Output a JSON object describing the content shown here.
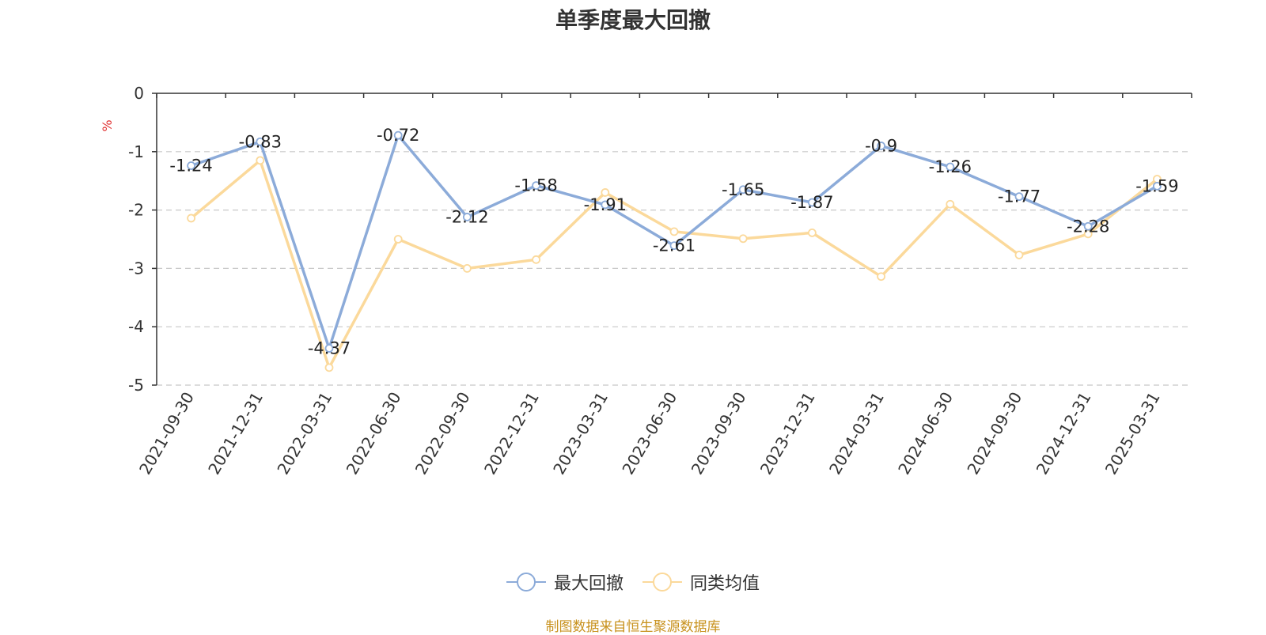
{
  "colors": {
    "series_primary": "#8cabd9",
    "series_secondary": "#fbd99b",
    "unit": "#e03030",
    "source": "#c8921e",
    "grid": "#c8c8c8",
    "axis": "#333333"
  },
  "legend": {
    "items": [
      {
        "label": "最大回撤",
        "icon": "circle-line-icon"
      },
      {
        "label": "同类均值",
        "icon": "circle-line-icon"
      }
    ]
  },
  "source_note": "制图数据来自恒生聚源数据库",
  "chart_data": {
    "type": "line",
    "title": "单季度最大回撤",
    "ylabel": "%",
    "xlabel": "",
    "ylim": [
      -5,
      0
    ],
    "yticks": [
      0,
      -1,
      -2,
      -3,
      -4,
      -5
    ],
    "grid": true,
    "legend_position": "bottom",
    "categories": [
      "2021-09-30",
      "2021-12-31",
      "2022-03-31",
      "2022-06-30",
      "2022-09-30",
      "2022-12-31",
      "2023-03-31",
      "2023-06-30",
      "2023-09-30",
      "2023-12-31",
      "2024-03-31",
      "2024-06-30",
      "2024-09-30",
      "2024-12-31",
      "2025-03-31"
    ],
    "series": [
      {
        "name": "最大回撤",
        "values": [
          -1.24,
          -0.83,
          -4.37,
          -0.72,
          -2.12,
          -1.58,
          -1.91,
          -2.61,
          -1.65,
          -1.87,
          -0.9,
          -1.26,
          -1.77,
          -2.28,
          -1.59
        ],
        "show_labels": true
      },
      {
        "name": "同类均值",
        "values": [
          -2.14,
          -1.15,
          -4.7,
          -2.5,
          -3.0,
          -2.85,
          -1.7,
          -2.37,
          -2.49,
          -2.39,
          -3.14,
          -1.9,
          -2.77,
          -2.41,
          -1.47
        ],
        "show_labels": false
      }
    ]
  }
}
